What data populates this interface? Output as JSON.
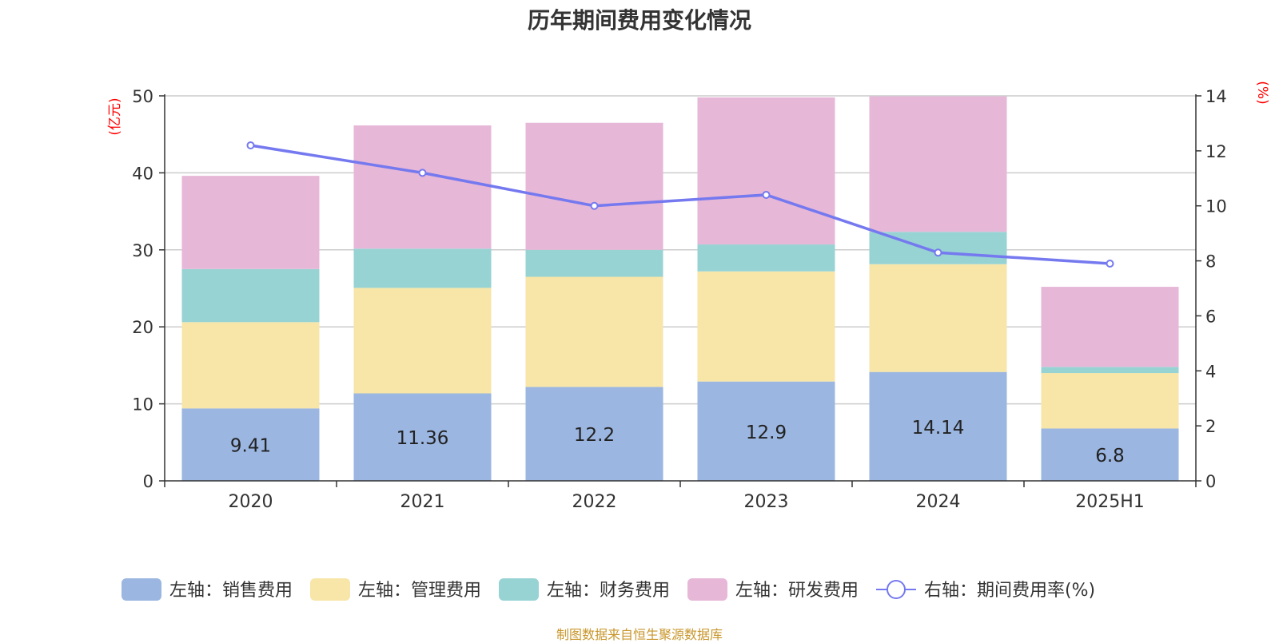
{
  "chart_data": {
    "type": "bar",
    "stacked": true,
    "title": "历年期间费用变化情况",
    "categories": [
      "2020",
      "2021",
      "2022",
      "2023",
      "2024",
      "2025H1"
    ],
    "left_axis": {
      "unit_label": "(亿元)",
      "ylim": [
        0,
        50
      ],
      "ticks": [
        "0",
        "10",
        "20",
        "30",
        "40",
        "50"
      ]
    },
    "right_axis": {
      "unit_label": "(%)",
      "ylim": [
        0,
        14
      ],
      "ticks": [
        "0",
        "2",
        "4",
        "6",
        "8",
        "10",
        "12",
        "14"
      ]
    },
    "series": [
      {
        "name": "左轴：销售费用",
        "color": "#9bb6e1",
        "axis": "left",
        "kind": "bar",
        "values": [
          9.41,
          11.36,
          12.2,
          12.9,
          14.14,
          6.8
        ],
        "show_labels": true
      },
      {
        "name": "左轴：管理费用",
        "color": "#f7e6a8",
        "axis": "left",
        "kind": "bar",
        "values": [
          11.2,
          13.7,
          14.3,
          14.3,
          14.0,
          7.2
        ],
        "show_labels": false
      },
      {
        "name": "左轴：财务费用",
        "color": "#98d3d4",
        "axis": "left",
        "kind": "bar",
        "values": [
          6.9,
          5.1,
          3.5,
          3.5,
          4.2,
          0.8
        ],
        "show_labels": false
      },
      {
        "name": "左轴：研发费用",
        "color": "#e7b7d7",
        "axis": "left",
        "kind": "bar",
        "values": [
          12.1,
          16.0,
          16.5,
          19.1,
          17.6,
          10.4
        ],
        "show_labels": false
      },
      {
        "name": "右轴：期间费用率(%)",
        "color": "#7579ef",
        "axis": "right",
        "kind": "line",
        "values": [
          12.2,
          11.2,
          10.0,
          10.4,
          8.3,
          7.9
        ],
        "show_labels": false
      }
    ],
    "grid": true,
    "legend_position": "bottom"
  },
  "footer": {
    "source": "制图数据来自恒生聚源数据库"
  }
}
